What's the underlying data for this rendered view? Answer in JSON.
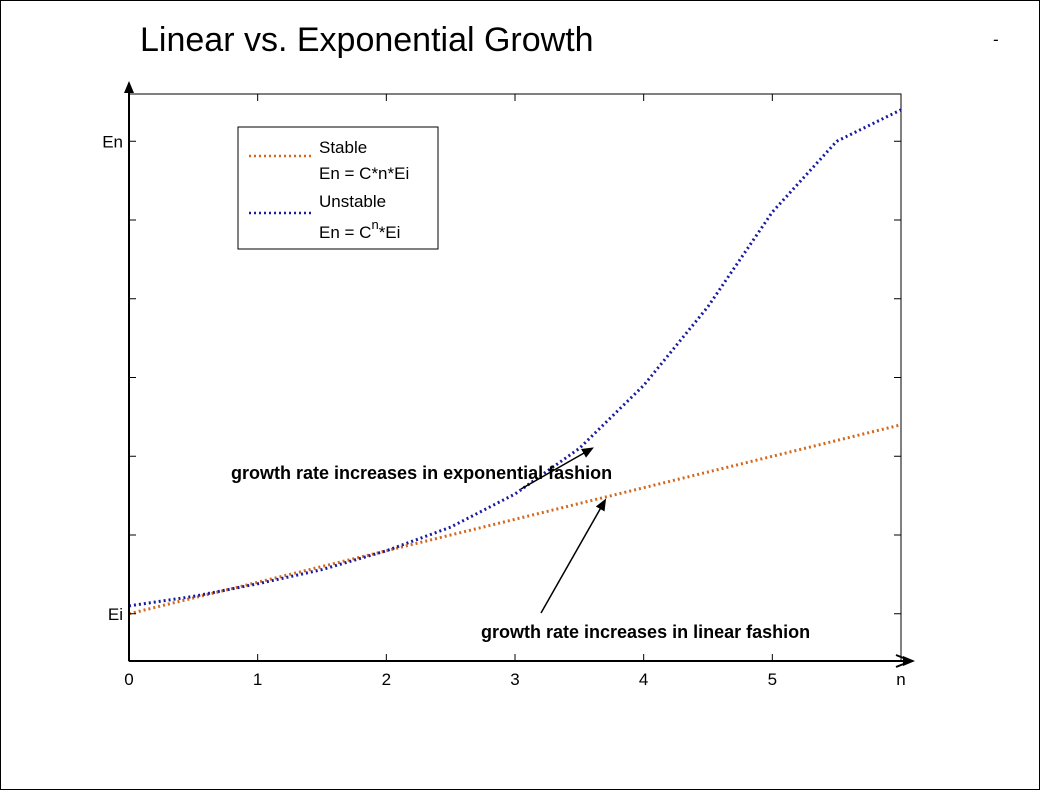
{
  "chart_data": {
    "type": "line",
    "title": "Linear vs. Exponential Growth",
    "corner_mark": "-",
    "xlabel": "n",
    "ylabel": "",
    "xlim": [
      0,
      6
    ],
    "ylim": [
      -0.3,
      3.3
    ],
    "x_ticks": [
      0,
      1,
      2,
      3,
      4,
      5
    ],
    "x_tick_labels": [
      "0",
      "1",
      "2",
      "3",
      "4",
      "5"
    ],
    "y_ticks": [
      0,
      3
    ],
    "y_tick_labels": [
      "Ei",
      "En"
    ],
    "grid": false,
    "legend_position": "top-left",
    "series": [
      {
        "name": "Stable",
        "formula": "En = C*n*Ei",
        "color": "#d2691e",
        "style": "dotted",
        "x": [
          0,
          0.5,
          1,
          1.5,
          2,
          2.5,
          3,
          3.5,
          4,
          4.5,
          5,
          5.5,
          6
        ],
        "y": [
          0,
          0.1,
          0.2,
          0.3,
          0.4,
          0.5,
          0.6,
          0.7,
          0.8,
          0.9,
          1.0,
          1.1,
          1.2
        ]
      },
      {
        "name": "Unstable",
        "formula_base": "En = C",
        "formula_exp": "n",
        "formula_tail": "*Ei",
        "color": "#1a1a9e",
        "style": "dotted",
        "x": [
          0,
          0.5,
          1,
          1.5,
          2,
          2.5,
          3,
          3.5,
          4,
          4.5,
          5,
          5.5,
          6
        ],
        "y": [
          0.05,
          0.11,
          0.19,
          0.28,
          0.4,
          0.55,
          0.76,
          1.05,
          1.45,
          1.95,
          2.55,
          3.0,
          3.2
        ]
      }
    ],
    "annotations": [
      {
        "text": "growth rate increases in exponential fashion",
        "points_to": [
          3.6,
          1.05
        ]
      },
      {
        "text": "growth rate increases in linear fashion",
        "points_to": [
          3.7,
          0.72
        ]
      }
    ]
  }
}
